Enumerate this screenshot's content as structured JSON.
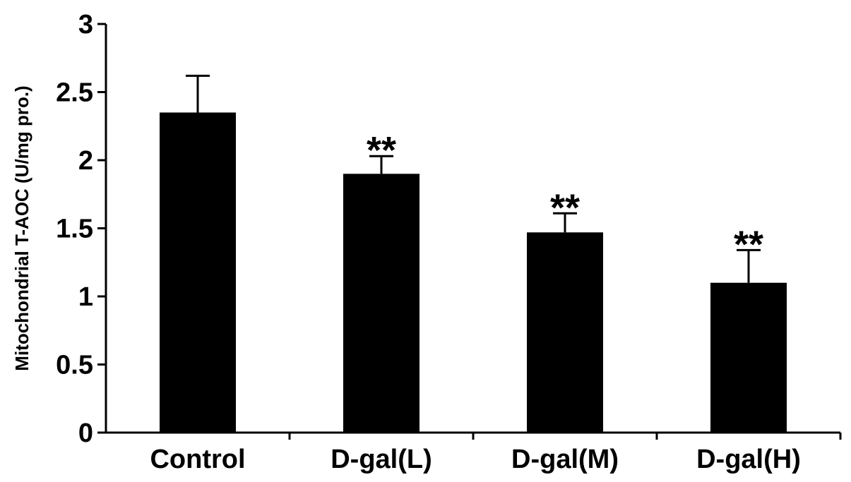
{
  "chart_data": {
    "type": "bar",
    "categories": [
      "Control",
      "D-gal(L)",
      "D-gal(M)",
      "D-gal(H)"
    ],
    "values": [
      2.35,
      1.9,
      1.47,
      1.1
    ],
    "errors": [
      0.27,
      0.13,
      0.14,
      0.24
    ],
    "significance": [
      "",
      "**",
      "**",
      "**"
    ],
    "ylabel": "Mitochondrial T-AOC (U/mg pro.)",
    "xlabel": "",
    "ylim": [
      0,
      3
    ],
    "yticks": [
      0,
      0.5,
      1,
      1.5,
      2,
      2.5,
      3
    ],
    "ytick_labels": [
      "0",
      "0.5",
      "1",
      "1.5",
      "2",
      "2.5",
      "3"
    ],
    "bar_color": "#000000",
    "grid": false,
    "legend": "none"
  }
}
